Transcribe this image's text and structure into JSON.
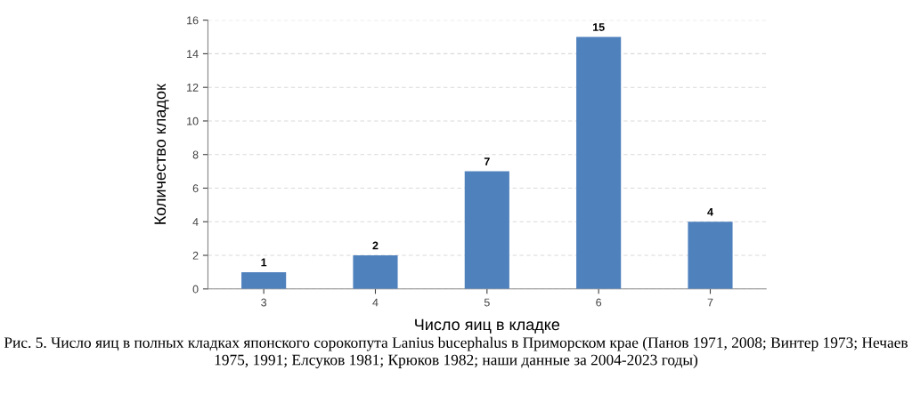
{
  "chart_data": {
    "type": "bar",
    "xlabel": "Число яиц в кладке",
    "ylabel": "Количество кладок",
    "categories": [
      "3",
      "4",
      "5",
      "6",
      "7"
    ],
    "values": [
      1,
      2,
      7,
      15,
      4
    ],
    "color": "#4f81bd",
    "ylim": [
      0,
      16
    ],
    "yticks": [
      0,
      2,
      4,
      6,
      8,
      10,
      12,
      14,
      16
    ],
    "grid": "y",
    "data_labels": true,
    "annotations": [
      "Рис. 5. Число яиц в полных кладках японского сорокопута Lanius bucephalus в Приморском крае (Панов 1971, 2008; Винтер 1973; Нечаев 1975, 1991; Елсуков 1981; Крюков 1982; наши данные за 2004-2023 годы)"
    ]
  }
}
